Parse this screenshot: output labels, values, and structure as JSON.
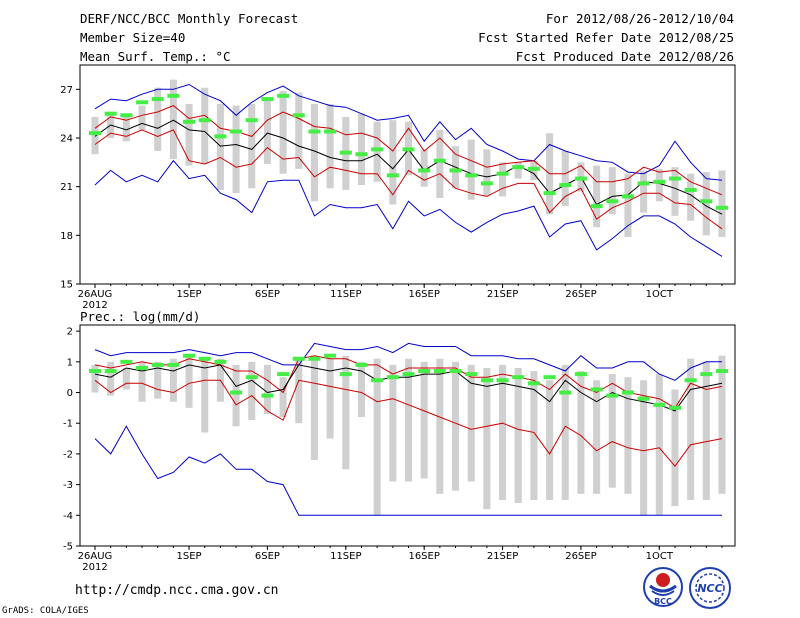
{
  "header": {
    "title": "DERF/NCC/BCC Monthly Forecast",
    "member_size": "Member Size=40",
    "variable": "Mean Surf. Temp.: °C",
    "period": "For 2012/08/26-2012/10/04",
    "fcst_started": "Fcst Started Refer Date 2012/08/25",
    "fcst_produced": "Fcst Produced Date 2012/08/26"
  },
  "footer": {
    "url": "http://cmdp.ncc.cma.gov.cn",
    "grads": "GrADS: COLA/IGES",
    "logo_bcc": "BCC",
    "logo_ncc": "NCC"
  },
  "colors": {
    "max_min": "#0000cc",
    "spread": "#cc0000",
    "mean": "#000000",
    "box": "#d0d0d0",
    "obs": "#44ee44"
  },
  "chart_data": [
    {
      "type": "box-line",
      "title": "Mean Surf. Temp.: °C",
      "days": 40,
      "x_tick_labels": [
        "26AUG",
        "1SEP",
        "6SEP",
        "11SEP",
        "16SEP",
        "21SEP",
        "26SEP",
        "1OCT"
      ],
      "x_tick_days": [
        0,
        6,
        11,
        16,
        21,
        26,
        31,
        36
      ],
      "x_year_label": "2012",
      "ylim": [
        15,
        28.5
      ],
      "yticks": [
        15,
        18,
        21,
        24,
        27
      ],
      "max": [
        25.8,
        26.4,
        26.3,
        26.7,
        27.0,
        27.0,
        27.3,
        26.7,
        26.3,
        25.4,
        26.2,
        26.8,
        27.2,
        26.6,
        26.3,
        26.0,
        25.9,
        25.5,
        25.1,
        25.2,
        25.4,
        23.8,
        25.0,
        23.9,
        24.6,
        23.6,
        23.2,
        22.7,
        22.6,
        23.6,
        23.2,
        22.9,
        22.6,
        22.5,
        21.9,
        21.8,
        22.3,
        23.8,
        22.5,
        21.5,
        21.4
      ],
      "min": [
        21.1,
        22.0,
        21.3,
        21.7,
        21.3,
        22.6,
        21.5,
        21.7,
        20.6,
        20.2,
        19.4,
        21.3,
        21.4,
        21.4,
        19.2,
        19.9,
        19.7,
        19.7,
        19.9,
        18.4,
        20.1,
        19.2,
        19.6,
        18.8,
        18.2,
        18.8,
        19.3,
        19.5,
        19.8,
        17.9,
        18.7,
        18.9,
        17.1,
        17.8,
        18.6,
        19.2,
        19.2,
        18.7,
        17.9,
        17.3,
        16.7
      ],
      "upper": [
        24.6,
        25.3,
        25.1,
        25.4,
        25.6,
        26.0,
        25.2,
        25.4,
        24.6,
        24.4,
        24.1,
        25.1,
        25.6,
        25.2,
        24.7,
        24.6,
        24.2,
        24.3,
        24.0,
        23.2,
        24.6,
        23.2,
        24.0,
        23.0,
        22.6,
        22.2,
        22.4,
        22.5,
        22.6,
        21.8,
        21.8,
        22.3,
        21.3,
        21.3,
        21.5,
        22.2,
        21.9,
        22.0,
        21.3,
        20.9,
        20.5
      ],
      "mean": [
        24.1,
        24.8,
        24.5,
        24.9,
        24.6,
        25.1,
        24.5,
        24.4,
        23.5,
        23.6,
        23.3,
        24.3,
        24.0,
        23.5,
        23.2,
        22.8,
        22.6,
        22.6,
        23.0,
        22.1,
        23.3,
        22.0,
        22.6,
        22.2,
        21.8,
        21.6,
        21.8,
        22.3,
        21.8,
        20.6,
        21.1,
        21.6,
        19.9,
        20.4,
        20.5,
        21.3,
        21.2,
        20.9,
        20.5,
        19.8,
        19.3
      ],
      "lower": [
        23.6,
        24.3,
        24.1,
        24.5,
        24.1,
        24.5,
        22.6,
        22.4,
        22.8,
        22.2,
        22.4,
        23.4,
        22.7,
        22.8,
        21.6,
        22.2,
        22.0,
        21.8,
        21.8,
        20.5,
        22.0,
        21.4,
        21.8,
        20.9,
        20.6,
        20.4,
        20.9,
        21.2,
        21.2,
        19.4,
        20.4,
        20.9,
        19.0,
        19.7,
        20.1,
        20.6,
        20.6,
        20.0,
        19.9,
        19.1,
        18.4
      ],
      "box_high": [
        25.3,
        25.6,
        25.5,
        26.0,
        27.1,
        27.6,
        26.1,
        27.1,
        26.1,
        26.0,
        26.1,
        26.3,
        26.9,
        26.8,
        26.1,
        26.1,
        25.3,
        25.5,
        25.0,
        25.1,
        25.0,
        23.3,
        24.5,
        23.5,
        23.9,
        23.3,
        22.5,
        22.5,
        22.6,
        24.3,
        23.2,
        22.5,
        22.3,
        22.2,
        21.8,
        22.0,
        22.1,
        22.2,
        21.8,
        21.9,
        22.0
      ],
      "box_low": [
        23.0,
        24.0,
        23.8,
        24.5,
        23.2,
        22.7,
        22.3,
        22.4,
        20.8,
        20.6,
        20.9,
        22.4,
        21.8,
        22.1,
        20.1,
        20.9,
        20.8,
        21.1,
        21.3,
        19.9,
        21.7,
        21.0,
        20.3,
        20.9,
        20.2,
        20.4,
        20.4,
        21.5,
        21.4,
        19.3,
        19.8,
        20.7,
        18.5,
        19.3,
        17.9,
        19.4,
        20.1,
        19.2,
        18.9,
        18.0,
        17.9
      ],
      "obs": [
        24.3,
        25.5,
        25.4,
        26.2,
        26.4,
        26.6,
        25.0,
        25.1,
        24.1,
        24.4,
        25.1,
        26.4,
        26.6,
        25.4,
        24.4,
        24.4,
        23.1,
        23.0,
        23.3,
        21.7,
        23.3,
        22.0,
        22.6,
        22.0,
        21.7,
        21.2,
        21.8,
        22.2,
        22.1,
        20.6,
        21.1,
        21.5,
        19.8,
        20.1,
        20.4,
        21.2,
        21.3,
        21.5,
        20.8,
        20.1,
        19.7
      ]
    },
    {
      "type": "box-line",
      "title": "Prec.: log(mm/d)",
      "days": 40,
      "x_tick_labels": [
        "26AUG",
        "1SEP",
        "6SEP",
        "11SEP",
        "16SEP",
        "21SEP",
        "26SEP",
        "1OCT"
      ],
      "x_tick_days": [
        0,
        6,
        11,
        16,
        21,
        26,
        31,
        36
      ],
      "x_year_label": "2012",
      "ylim": [
        -5,
        2.2
      ],
      "yticks": [
        -5,
        -4,
        -3,
        -2,
        -1,
        0,
        1,
        2
      ],
      "max": [
        1.4,
        1.2,
        1.3,
        1.3,
        1.3,
        1.3,
        1.4,
        1.3,
        1.2,
        1.3,
        1.3,
        1.1,
        0.9,
        0.9,
        1.6,
        1.5,
        1.4,
        1.4,
        1.5,
        1.3,
        1.6,
        1.5,
        1.5,
        1.5,
        1.2,
        1.2,
        1.2,
        1.1,
        1.1,
        0.9,
        0.7,
        1.2,
        0.8,
        0.8,
        1.0,
        1.0,
        0.6,
        0.4,
        0.8,
        1.0,
        1.0
      ],
      "min": [
        -1.5,
        -2.0,
        -1.1,
        -2.0,
        -2.8,
        -2.6,
        -2.1,
        -2.3,
        -2.0,
        -2.5,
        -2.5,
        -2.9,
        -3.0,
        -4.0,
        -4.0,
        -4.0,
        -4.0,
        -4.0,
        -4.0,
        -4.0,
        -4.0,
        -4.0,
        -4.0,
        -4.0,
        -4.0,
        -4.0,
        -4.0,
        -4.0,
        -4.0,
        -4.0,
        -4.0,
        -4.0,
        -4.0,
        -4.0,
        -4.0,
        -4.0,
        -4.0,
        -4.0,
        -4.0,
        -4.0,
        -4.0
      ],
      "upper": [
        0.9,
        0.8,
        0.9,
        1.0,
        0.9,
        0.9,
        1.1,
        1.0,
        0.9,
        0.7,
        0.7,
        0.4,
        0.0,
        1.1,
        1.2,
        1.1,
        1.1,
        0.9,
        0.9,
        0.6,
        0.8,
        0.8,
        0.8,
        0.8,
        0.5,
        0.5,
        0.6,
        0.5,
        0.4,
        0.1,
        0.6,
        0.2,
        0.0,
        0.3,
        0.0,
        -0.1,
        -0.2,
        -0.5,
        0.3,
        0.1,
        0.2
      ],
      "mean": [
        0.6,
        0.5,
        0.8,
        0.7,
        0.8,
        0.7,
        0.9,
        0.8,
        0.9,
        0.2,
        0.4,
        0.0,
        0.1,
        0.9,
        0.8,
        0.7,
        0.8,
        0.7,
        0.4,
        0.5,
        0.5,
        0.6,
        0.6,
        0.7,
        0.3,
        0.2,
        0.3,
        0.2,
        0.1,
        -0.3,
        0.4,
        0.0,
        -0.3,
        0.0,
        -0.2,
        -0.3,
        -0.4,
        -0.6,
        0.1,
        0.2,
        0.3
      ],
      "lower": [
        0.4,
        0.0,
        0.3,
        0.3,
        0.1,
        0.0,
        0.3,
        0.4,
        0.4,
        -0.4,
        -0.1,
        -0.6,
        -0.9,
        0.4,
        0.3,
        0.2,
        0.1,
        0.0,
        -0.3,
        -0.2,
        -0.4,
        -0.6,
        -0.8,
        -1.0,
        -1.2,
        -1.1,
        -1.0,
        -1.2,
        -1.3,
        -2.0,
        -1.1,
        -1.4,
        -1.9,
        -1.6,
        -1.8,
        -1.9,
        -1.8,
        -2.4,
        -1.7,
        -1.6,
        -1.5
      ],
      "box_high": [
        0.9,
        1.0,
        0.8,
        1.0,
        1.0,
        1.1,
        1.2,
        1.1,
        1.1,
        0.9,
        1.0,
        0.9,
        0.5,
        1.1,
        1.2,
        1.1,
        1.2,
        1.0,
        1.1,
        0.9,
        1.1,
        1.0,
        1.1,
        1.0,
        0.9,
        0.8,
        0.9,
        0.8,
        0.7,
        0.4,
        0.9,
        0.7,
        0.4,
        0.6,
        0.5,
        0.4,
        0.6,
        0.1,
        1.1,
        1.0,
        1.2
      ],
      "box_low": [
        0.0,
        -0.1,
        0.1,
        -0.3,
        -0.2,
        -0.3,
        -0.5,
        -1.3,
        -0.3,
        -1.1,
        -0.9,
        -0.7,
        -0.8,
        -1.0,
        -2.2,
        -1.5,
        -2.5,
        -0.8,
        -4.0,
        -2.9,
        -2.9,
        -2.8,
        -3.3,
        -3.2,
        -2.9,
        -3.8,
        -3.5,
        -3.6,
        -3.5,
        -3.5,
        -3.5,
        -3.3,
        -3.3,
        -3.1,
        -3.3,
        -4.0,
        -4.0,
        -3.7,
        -3.5,
        -3.5,
        -3.3
      ],
      "obs": [
        0.7,
        0.7,
        1.0,
        0.8,
        0.9,
        0.9,
        1.2,
        1.1,
        1.0,
        0.0,
        0.5,
        -0.1,
        0.6,
        1.1,
        1.1,
        1.2,
        0.6,
        0.9,
        0.4,
        0.5,
        0.6,
        0.7,
        0.7,
        0.7,
        0.6,
        0.4,
        0.4,
        0.5,
        0.3,
        0.5,
        0.0,
        0.6,
        0.1,
        -0.1,
        -0.0,
        -0.2,
        -0.4,
        -0.5,
        0.4,
        0.6,
        0.7
      ]
    }
  ]
}
